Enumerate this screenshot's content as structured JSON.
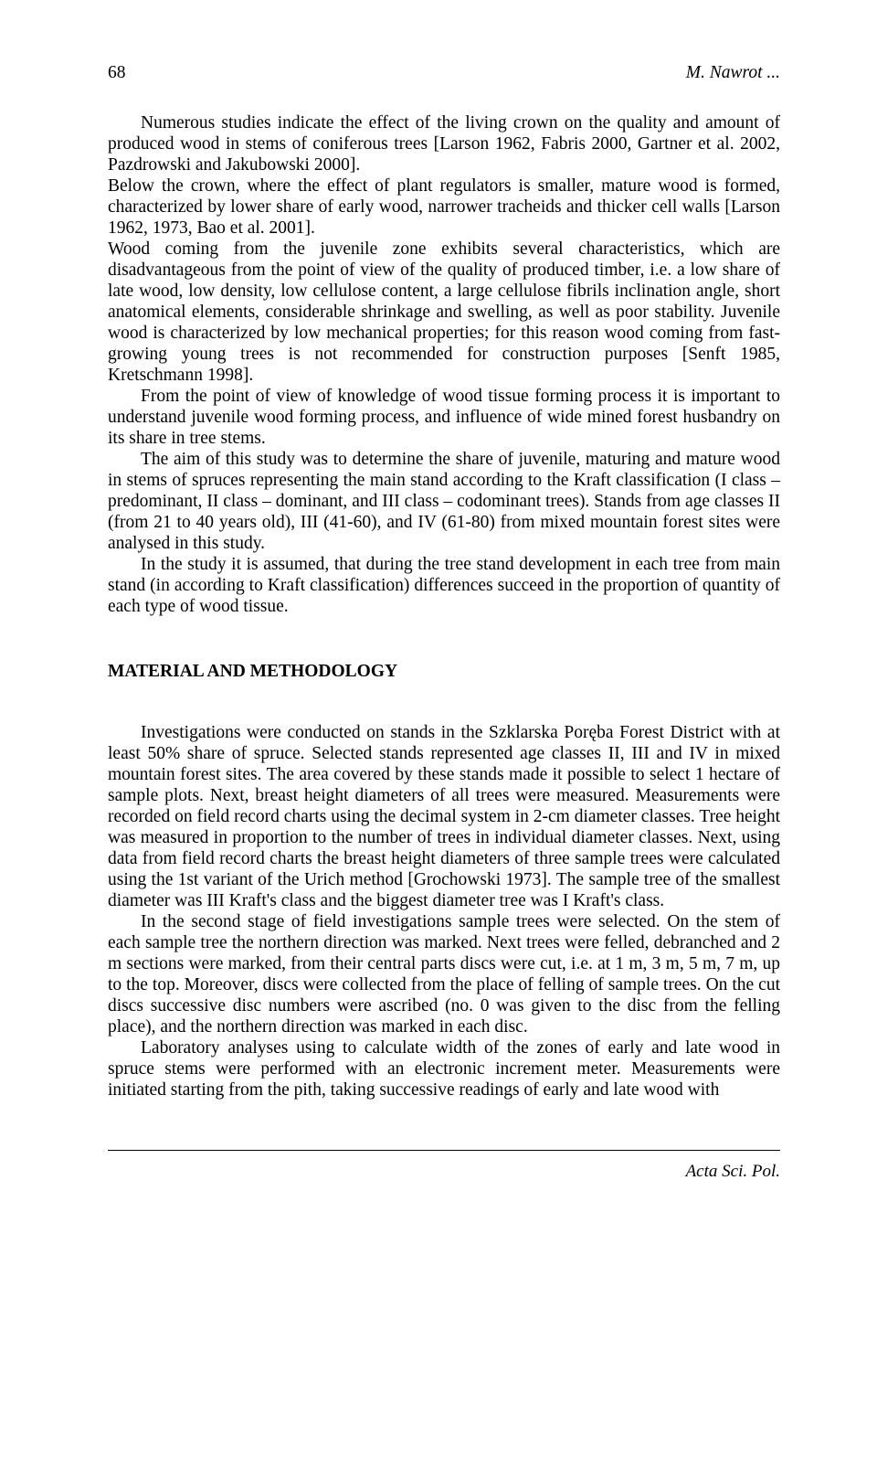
{
  "header": {
    "page_number": "68",
    "author": "M. Nawrot ..."
  },
  "paragraphs": {
    "p1": "Numerous studies indicate the effect of the living crown on the quality and amount of produced wood in stems of coniferous trees [Larson 1962, Fabris 2000, Gartner et al. 2002, Pazdrowski and Jakubowski 2000].",
    "p2": "Below the crown, where the effect of plant regulators is smaller, mature wood is formed, characterized by lower share of early wood, narrower tracheids and thicker cell walls [Larson 1962, 1973, Bao et al. 2001].",
    "p3": "Wood coming from the juvenile zone exhibits several characteristics, which are disadvantageous from the point of view of the quality of produced timber, i.e. a low share of late wood, low density, low cellulose content, a large cellulose fibrils inclination angle, short anatomical elements, considerable shrinkage and swelling, as well as poor stability. Juvenile wood is characterized by low mechanical properties; for this reason wood coming from fast-growing young trees is not recommended for construction purposes [Senft 1985, Kretschmann 1998].",
    "p4": "From the point of view of knowledge of wood tissue forming process it is important to understand juvenile wood forming process, and influence of wide mined forest husbandry on its share in tree stems.",
    "p5": "The aim of this study was to determine the share of juvenile, maturing and mature wood in stems of spruces representing the main stand according to the Kraft classification (I class – predominant, II class – dominant, and III class – codominant trees). Stands from age classes II (from 21 to 40 years old), III (41-60), and IV (61-80) from mixed mountain forest sites were analysed in this study.",
    "p6": "In the study it is assumed, that during the tree stand development in each tree from main stand (in according to Kraft classification) differences succeed in the proportion of quantity of each type of wood tissue."
  },
  "section_heading": "MATERIAL AND METHODOLOGY",
  "methodology": {
    "m1": "Investigations were conducted on stands in the Szklarska Poręba Forest District with at least 50% share of spruce. Selected stands represented age classes II, III and IV in mixed mountain forest sites. The area covered by these stands made it possible to select 1 hectare of sample plots. Next, breast height diameters of all trees were measured. Measurements were recorded on field record charts using the decimal system in 2-cm diameter classes. Tree height was measured in proportion to the number of trees in individual diameter classes. Next, using data from field record charts the breast height diameters of three sample trees were calculated using the 1st variant of the Urich method [Grochowski 1973]. The sample tree of the smallest diameter was III Kraft's class and the biggest diameter tree was I Kraft's class.",
    "m2": "In the second stage of field investigations sample trees were selected. On the stem of each sample tree the northern direction was marked. Next trees were felled, debranched and 2 m sections were marked, from their central parts discs were cut, i.e. at 1 m, 3 m, 5 m, 7 m, up to the top. Moreover, discs were collected from the place of felling of sample trees. On the cut discs successive disc numbers were ascribed (no. 0 was given to the disc from the felling place), and the northern direction was marked in each disc.",
    "m3": "Laboratory analyses using to calculate width of the zones of early and late wood in spruce stems were performed with an electronic increment meter. Measurements were initiated starting from the pith, taking successive readings of early and late wood with"
  },
  "footer": {
    "journal": "Acta Sci. Pol."
  }
}
